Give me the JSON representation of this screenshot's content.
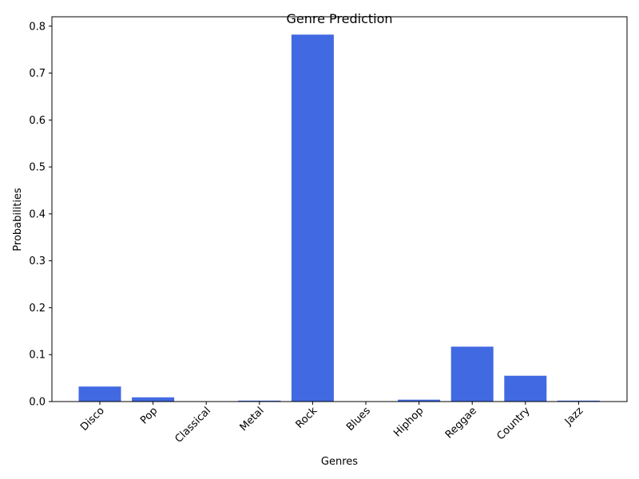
{
  "chart_data": {
    "type": "bar",
    "title": "Genre Prediction",
    "xlabel": "Genres",
    "ylabel": "Probabilities",
    "categories": [
      "Disco",
      "Pop",
      "Classical",
      "Metal",
      "Rock",
      "Blues",
      "Hiphop",
      "Reggae",
      "Country",
      "Jazz"
    ],
    "values": [
      0.032,
      0.009,
      0.0003,
      0.002,
      0.782,
      0.0002,
      0.004,
      0.117,
      0.055,
      0.002
    ],
    "ylim": [
      0,
      0.82
    ],
    "yticks": [
      0.0,
      0.1,
      0.2,
      0.3,
      0.4,
      0.5,
      0.6,
      0.7,
      0.8
    ],
    "ytick_labels": [
      "0.0",
      "0.1",
      "0.2",
      "0.3",
      "0.4",
      "0.5",
      "0.6",
      "0.7",
      "0.8"
    ],
    "bar_color": "#4169e1",
    "grid": false,
    "legend": false
  }
}
